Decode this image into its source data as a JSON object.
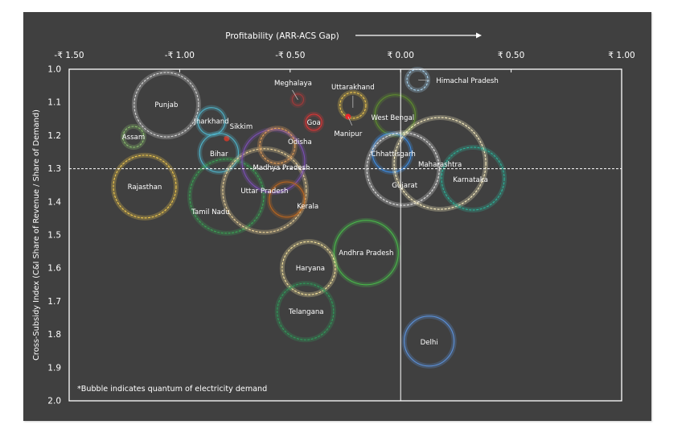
{
  "chart_data": {
    "type": "bubble",
    "title": "Profitability (ARR-ACS Gap)",
    "xlabel": "Profitability (ARR-ACS Gap)",
    "ylabel": "Cross-Subsidy Index (C&I Share of Revenue / Share of Demand)",
    "xlim": [
      -1.5,
      1.0
    ],
    "ylim": [
      1.0,
      2.0
    ],
    "y_inverted": true,
    "x_ticks": [
      -1.5,
      -1.0,
      -0.5,
      0.0,
      0.5,
      1.0
    ],
    "x_tick_labels": [
      "-₹ 1.50",
      "-₹ 1.00",
      "-₹ 0.50",
      "₹ 0.00",
      "₹ 0.50",
      "₹ 1.00"
    ],
    "y_ticks": [
      1.0,
      1.1,
      1.2,
      1.3,
      1.4,
      1.5,
      1.6,
      1.7,
      1.8,
      1.9,
      2.0
    ],
    "y_tick_labels": [
      "1.0",
      "1.1",
      "1.2",
      "1.3",
      "1.4",
      "1.5",
      "1.6",
      "1.7",
      "1.8",
      "1.9",
      "2.0"
    ],
    "reference_lines": {
      "x": 0.0,
      "y": 1.3
    },
    "grid": false,
    "note": "*Bubble indicates quantum of electricity demand",
    "size_units": "relative electricity demand",
    "points": [
      {
        "name": "Punjab",
        "x": -1.06,
        "y": 1.107,
        "size": 16.0,
        "color": "#d9d9d9",
        "style": "dashed"
      },
      {
        "name": "Jharkhand",
        "x": -0.856,
        "y": 1.157,
        "size": 2.9,
        "color": "#4fb3c9",
        "style": "solid"
      },
      {
        "name": "Assam",
        "x": -1.209,
        "y": 1.204,
        "size": 1.7,
        "color": "#8dc26f",
        "style": "dashed"
      },
      {
        "name": "Sikkim",
        "x": -0.787,
        "y": 1.209,
        "size": 0.1,
        "color": "#c0392b",
        "style": "solid"
      },
      {
        "name": "Bihar",
        "x": -0.822,
        "y": 1.252,
        "size": 5.8,
        "color": "#4fb3c9",
        "style": "solid"
      },
      {
        "name": "Rajasthan",
        "x": -1.158,
        "y": 1.354,
        "size": 15.2,
        "color": "#f2c94c",
        "style": "dashed"
      },
      {
        "name": "Tamil Nadu",
        "x": -0.787,
        "y": 1.383,
        "size": 21.2,
        "color": "#3aa655",
        "style": "dashed"
      },
      {
        "name": "Uttar Pradesh",
        "x": -0.616,
        "y": 1.366,
        "size": 27.0,
        "color": "#f2d79b",
        "style": "dashed"
      },
      {
        "name": "Madhya Pradesh",
        "x": -0.576,
        "y": 1.277,
        "size": 15.2,
        "color": "#7b4fb3",
        "style": "solid"
      },
      {
        "name": "Odisha",
        "x": -0.558,
        "y": 1.231,
        "size": 4.8,
        "color": "#e8a25a",
        "style": "dashed"
      },
      {
        "name": "Kerala",
        "x": -0.515,
        "y": 1.393,
        "size": 4.8,
        "color": "#b8651f",
        "style": "solid"
      },
      {
        "name": "Meghalaya",
        "x": -0.465,
        "y": 1.092,
        "size": 0.5,
        "color": "#a33a3a",
        "style": "solid"
      },
      {
        "name": "Goa",
        "x": -0.393,
        "y": 1.16,
        "size": 1.0,
        "color": "#d93636",
        "style": "solid"
      },
      {
        "name": "Uttarakhand",
        "x": -0.216,
        "y": 1.109,
        "size": 2.6,
        "color": "#f2c94c",
        "style": "dashed"
      },
      {
        "name": "Manipur",
        "x": -0.238,
        "y": 1.143,
        "size": 0.1,
        "color": "#e8282b",
        "style": "solid"
      },
      {
        "name": "West Bengal",
        "x": -0.025,
        "y": 1.138,
        "size": 6.3,
        "color": "#5f8f2e",
        "style": "solid"
      },
      {
        "name": "Chhattisgarh",
        "x": -0.04,
        "y": 1.252,
        "size": 5.8,
        "color": "#3d8be0",
        "style": "solid"
      },
      {
        "name": "Gujarat",
        "x": 0.011,
        "y": 1.301,
        "size": 20.3,
        "color": "#e6e6e6",
        "style": "dashed"
      },
      {
        "name": "Maharashtra",
        "x": 0.178,
        "y": 1.284,
        "size": 32.5,
        "color": "#fff3c4",
        "style": "dashed"
      },
      {
        "name": "Karnataka",
        "x": 0.327,
        "y": 1.33,
        "size": 15.2,
        "color": "#2bb39a",
        "style": "dashed"
      },
      {
        "name": "Himachal Pradesh",
        "x": 0.076,
        "y": 1.032,
        "size": 1.7,
        "color": "#a8d4f0",
        "style": "dashed"
      },
      {
        "name": "Andhra Pradesh",
        "x": -0.156,
        "y": 1.553,
        "size": 16.0,
        "color": "#49b84a",
        "style": "solid"
      },
      {
        "name": "Haryana",
        "x": -0.416,
        "y": 1.6,
        "size": 10.9,
        "color": "#fbe8a0",
        "style": "dashed"
      },
      {
        "name": "Telangana",
        "x": -0.431,
        "y": 1.731,
        "size": 12.3,
        "color": "#2e9e5b",
        "style": "dashed"
      },
      {
        "name": "Delhi",
        "x": 0.129,
        "y": 1.82,
        "size": 9.6,
        "color": "#5b8fd6",
        "style": "solid"
      }
    ]
  },
  "colors": {
    "panel_background": "#404040",
    "axis_color": "#ffffff",
    "text_color": "#ffffff"
  }
}
